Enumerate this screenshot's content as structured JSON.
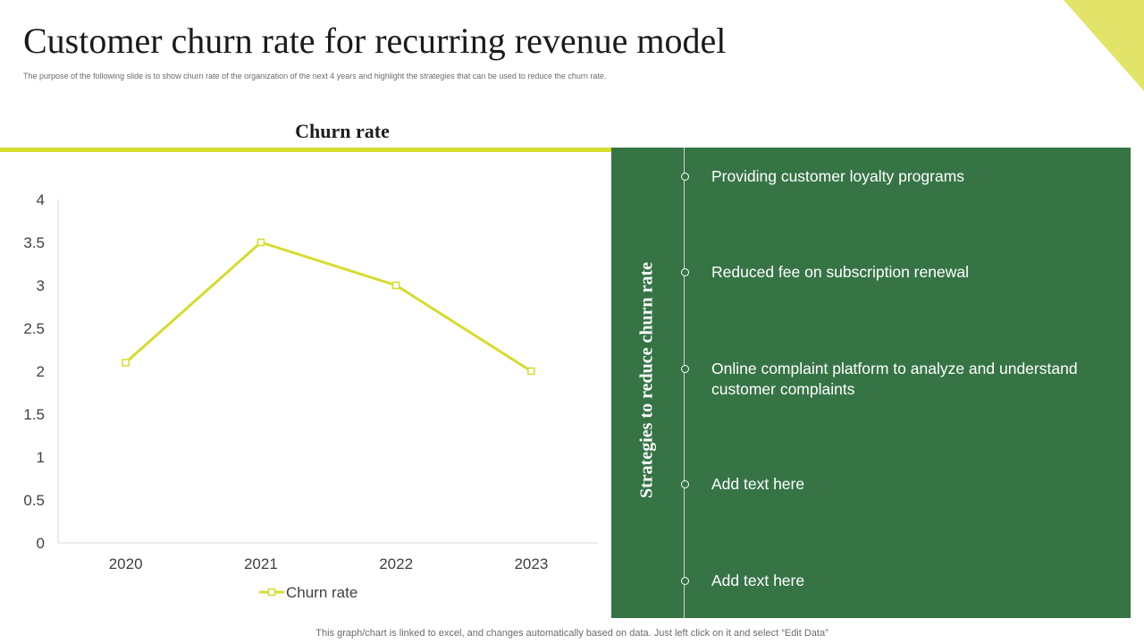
{
  "slide": {
    "title": "Customer churn rate for recurring revenue model",
    "subtitle": "The purpose of the following slide is to show churn rate of the organization of the next 4 years and highlight the strategies that can be used to reduce the churn rate.",
    "footnote": "This graph/chart is linked to excel,  and changes automatically based on data. Just left click on it and select “Edit Data”",
    "accent_color": "#d6dc2c",
    "panel_color": "#367445"
  },
  "chart_data": {
    "type": "line",
    "title": "Churn rate",
    "categories": [
      "2020",
      "2021",
      "2022",
      "2023"
    ],
    "series": [
      {
        "name": "Churn rate",
        "values": [
          2.1,
          3.5,
          3.0,
          2.0
        ],
        "color": "#d6dc2c"
      }
    ],
    "ylim": [
      0,
      4
    ],
    "yticks": [
      "0",
      "0.5",
      "1",
      "1.5",
      "2",
      "2.5",
      "3",
      "3.5",
      "4"
    ],
    "grid": false,
    "legend": "bottom"
  },
  "strategies": {
    "heading": "Strategies to reduce churn rate",
    "items": [
      "Providing customer loyalty programs",
      "Reduced fee on subscription renewal",
      "Online complaint platform to analyze and understand customer complaints",
      "Add text here",
      "Add text here"
    ]
  }
}
